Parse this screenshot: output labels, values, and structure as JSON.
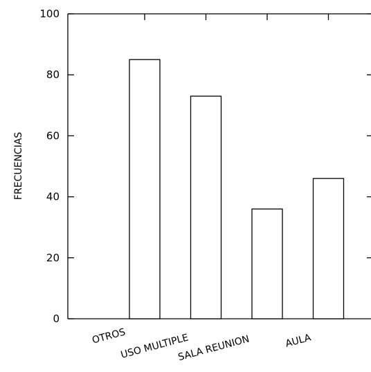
{
  "chart_data": {
    "type": "bar",
    "categories": [
      "OTROS",
      "USO MULTIPLE",
      "SALA REUNION",
      "AULA"
    ],
    "values": [
      85,
      73,
      36,
      46
    ],
    "title": "",
    "xlabel": "",
    "ylabel": "FRECUENCIAS",
    "ylim": [
      0,
      100
    ],
    "yticks": [
      0,
      20,
      40,
      60,
      80,
      100
    ],
    "grid": false,
    "legend": "none",
    "colors": {
      "bar_fill": "#ffffff",
      "bar_stroke": "#000000",
      "axis": "#000000"
    }
  }
}
